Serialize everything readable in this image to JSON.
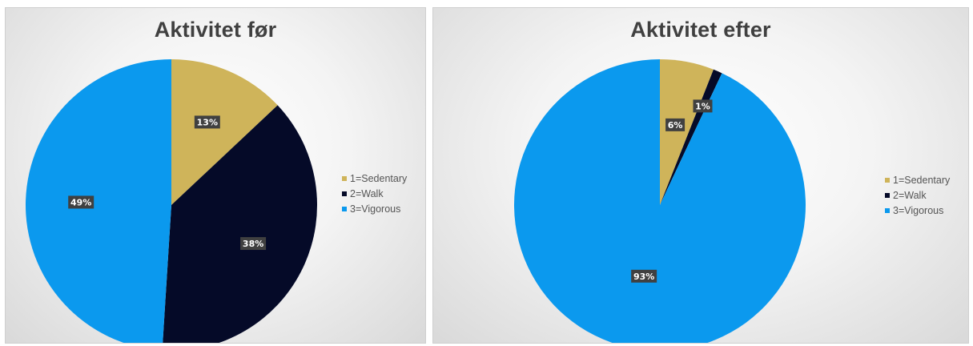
{
  "chart_data": [
    {
      "type": "pie",
      "title": "Aktivitet før",
      "categories": [
        "1=Sedentary",
        "2=Walk",
        "3=Vigorous"
      ],
      "values": [
        13,
        38,
        49
      ],
      "labels": [
        "13%",
        "38%",
        "49%"
      ],
      "colors": [
        "#cfb45a",
        "#050a28",
        "#0b99ee"
      ],
      "legend": "right"
    },
    {
      "type": "pie",
      "title": "Aktivitet efter",
      "categories": [
        "1=Sedentary",
        "2=Walk",
        "3=Vigorous"
      ],
      "values": [
        6,
        1,
        93
      ],
      "labels": [
        "6%",
        "1%",
        "93%"
      ],
      "colors": [
        "#cfb45a",
        "#050a28",
        "#0b99ee"
      ],
      "legend": "right"
    }
  ]
}
